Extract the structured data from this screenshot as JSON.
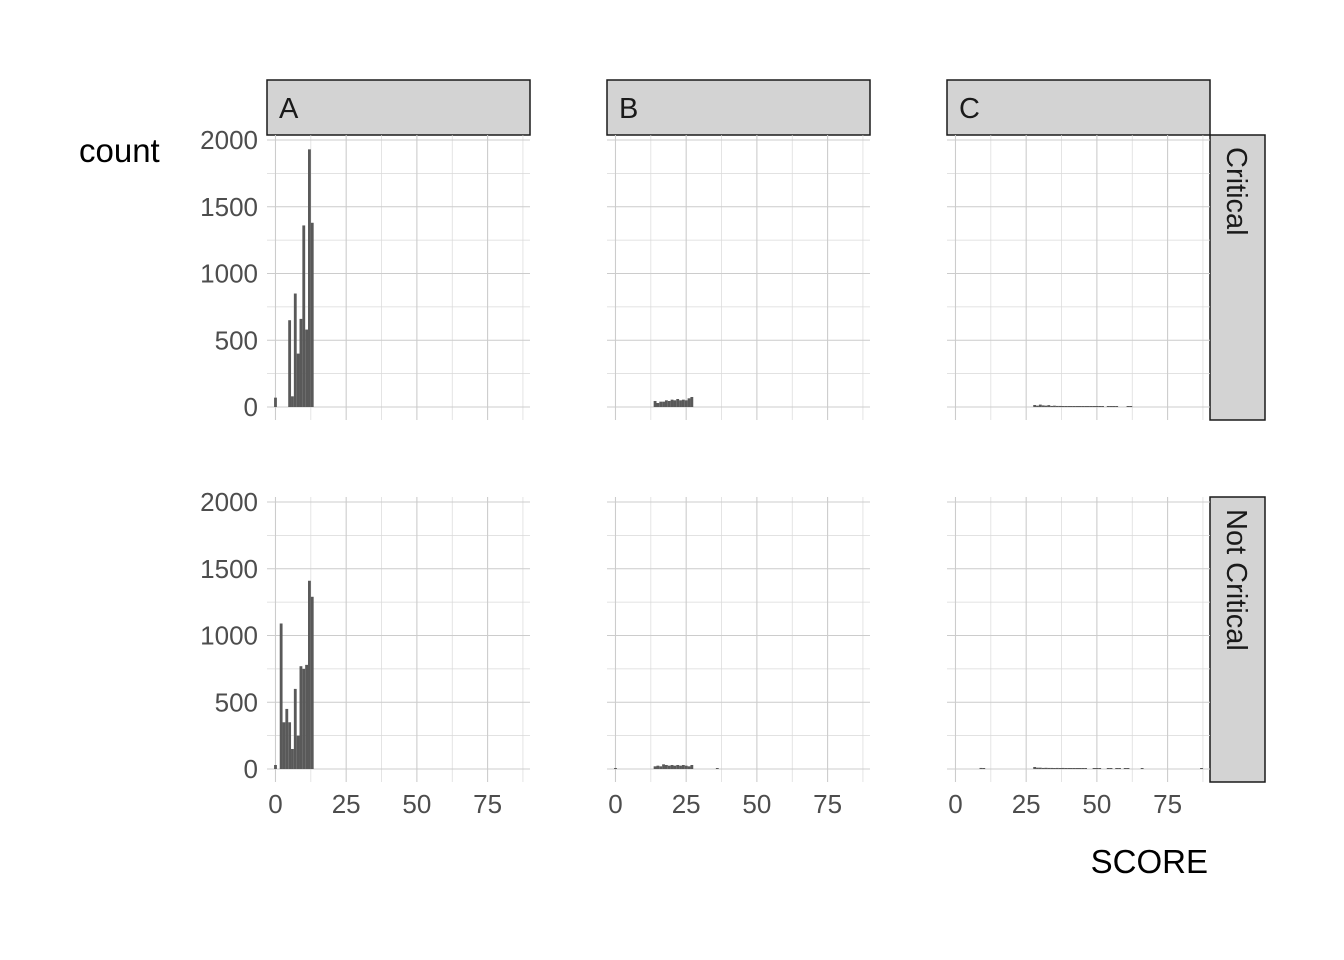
{
  "chart_data": {
    "type": "bar",
    "subtype": "faceted-histogram",
    "xlabel": "SCORE",
    "ylabel": "count",
    "xlim": [
      -3,
      90
    ],
    "ylim": [
      0,
      2000
    ],
    "x_ticks": [
      0,
      25,
      50,
      75
    ],
    "y_ticks": [
      0,
      500,
      1000,
      1500,
      2000
    ],
    "grid": true,
    "bar_color": "#595959",
    "strip_color": "#d3d3d3",
    "col_facets": [
      "A",
      "B",
      "C"
    ],
    "row_facets": [
      "Critical",
      "Not Critical"
    ],
    "panels": [
      {
        "col": "A",
        "row": "Critical",
        "bins": [
          {
            "x": 0,
            "count": 70
          },
          {
            "x": 5,
            "count": 650
          },
          {
            "x": 6,
            "count": 80
          },
          {
            "x": 7,
            "count": 850
          },
          {
            "x": 8,
            "count": 400
          },
          {
            "x": 9,
            "count": 660
          },
          {
            "x": 10,
            "count": 1360
          },
          {
            "x": 11,
            "count": 580
          },
          {
            "x": 12,
            "count": 1930
          },
          {
            "x": 13,
            "count": 1380
          }
        ]
      },
      {
        "col": "B",
        "row": "Critical",
        "bins": [
          {
            "x": 14,
            "count": 45
          },
          {
            "x": 15,
            "count": 30
          },
          {
            "x": 16,
            "count": 40
          },
          {
            "x": 17,
            "count": 40
          },
          {
            "x": 18,
            "count": 50
          },
          {
            "x": 19,
            "count": 45
          },
          {
            "x": 20,
            "count": 55
          },
          {
            "x": 21,
            "count": 50
          },
          {
            "x": 22,
            "count": 60
          },
          {
            "x": 23,
            "count": 50
          },
          {
            "x": 24,
            "count": 55
          },
          {
            "x": 25,
            "count": 50
          },
          {
            "x": 26,
            "count": 65
          },
          {
            "x": 27,
            "count": 75
          }
        ]
      },
      {
        "col": "C",
        "row": "Critical",
        "bins": [
          {
            "x": 28,
            "count": 15
          },
          {
            "x": 29,
            "count": 10
          },
          {
            "x": 30,
            "count": 18
          },
          {
            "x": 31,
            "count": 12
          },
          {
            "x": 32,
            "count": 10
          },
          {
            "x": 33,
            "count": 14
          },
          {
            "x": 34,
            "count": 8
          },
          {
            "x": 35,
            "count": 10
          },
          {
            "x": 36,
            "count": 8
          },
          {
            "x": 37,
            "count": 8
          },
          {
            "x": 38,
            "count": 6
          },
          {
            "x": 39,
            "count": 7
          },
          {
            "x": 40,
            "count": 6
          },
          {
            "x": 41,
            "count": 6
          },
          {
            "x": 42,
            "count": 5
          },
          {
            "x": 43,
            "count": 6
          },
          {
            "x": 44,
            "count": 5
          },
          {
            "x": 45,
            "count": 5
          },
          {
            "x": 46,
            "count": 5
          },
          {
            "x": 47,
            "count": 4
          },
          {
            "x": 48,
            "count": 5
          },
          {
            "x": 49,
            "count": 4
          },
          {
            "x": 50,
            "count": 4
          },
          {
            "x": 51,
            "count": 3
          },
          {
            "x": 52,
            "count": 4
          },
          {
            "x": 54,
            "count": 4
          },
          {
            "x": 55,
            "count": 4
          },
          {
            "x": 56,
            "count": 3
          },
          {
            "x": 57,
            "count": 3
          },
          {
            "x": 61,
            "count": 4
          },
          {
            "x": 62,
            "count": 3
          }
        ]
      },
      {
        "col": "A",
        "row": "Not Critical",
        "bins": [
          {
            "x": 0,
            "count": 30
          },
          {
            "x": 2,
            "count": 1090
          },
          {
            "x": 3,
            "count": 350
          },
          {
            "x": 4,
            "count": 450
          },
          {
            "x": 5,
            "count": 350
          },
          {
            "x": 6,
            "count": 150
          },
          {
            "x": 7,
            "count": 600
          },
          {
            "x": 8,
            "count": 250
          },
          {
            "x": 9,
            "count": 770
          },
          {
            "x": 10,
            "count": 750
          },
          {
            "x": 11,
            "count": 780
          },
          {
            "x": 12,
            "count": 1410
          },
          {
            "x": 13,
            "count": 1290
          }
        ]
      },
      {
        "col": "B",
        "row": "Not Critical",
        "bins": [
          {
            "x": 0,
            "count": 5
          },
          {
            "x": 14,
            "count": 20
          },
          {
            "x": 15,
            "count": 25
          },
          {
            "x": 16,
            "count": 20
          },
          {
            "x": 17,
            "count": 35
          },
          {
            "x": 18,
            "count": 30
          },
          {
            "x": 19,
            "count": 25
          },
          {
            "x": 20,
            "count": 30
          },
          {
            "x": 21,
            "count": 25
          },
          {
            "x": 22,
            "count": 30
          },
          {
            "x": 23,
            "count": 25
          },
          {
            "x": 24,
            "count": 30
          },
          {
            "x": 25,
            "count": 25
          },
          {
            "x": 26,
            "count": 20
          },
          {
            "x": 27,
            "count": 30
          },
          {
            "x": 36,
            "count": 5
          }
        ]
      },
      {
        "col": "C",
        "row": "Not Critical",
        "bins": [
          {
            "x": 9,
            "count": 8
          },
          {
            "x": 10,
            "count": 6
          },
          {
            "x": 28,
            "count": 15
          },
          {
            "x": 29,
            "count": 10
          },
          {
            "x": 30,
            "count": 10
          },
          {
            "x": 31,
            "count": 8
          },
          {
            "x": 32,
            "count": 9
          },
          {
            "x": 33,
            "count": 8
          },
          {
            "x": 34,
            "count": 8
          },
          {
            "x": 35,
            "count": 7
          },
          {
            "x": 36,
            "count": 8
          },
          {
            "x": 37,
            "count": 7
          },
          {
            "x": 38,
            "count": 8
          },
          {
            "x": 39,
            "count": 7
          },
          {
            "x": 40,
            "count": 7
          },
          {
            "x": 41,
            "count": 6
          },
          {
            "x": 42,
            "count": 6
          },
          {
            "x": 43,
            "count": 7
          },
          {
            "x": 44,
            "count": 6
          },
          {
            "x": 45,
            "count": 6
          },
          {
            "x": 46,
            "count": 5
          },
          {
            "x": 49,
            "count": 4
          },
          {
            "x": 50,
            "count": 4
          },
          {
            "x": 51,
            "count": 5
          },
          {
            "x": 54,
            "count": 6
          },
          {
            "x": 55,
            "count": 5
          },
          {
            "x": 57,
            "count": 6
          },
          {
            "x": 58,
            "count": 5
          },
          {
            "x": 60,
            "count": 7
          },
          {
            "x": 61,
            "count": 5
          },
          {
            "x": 66,
            "count": 4
          },
          {
            "x": 87,
            "count": 4
          }
        ]
      }
    ]
  }
}
